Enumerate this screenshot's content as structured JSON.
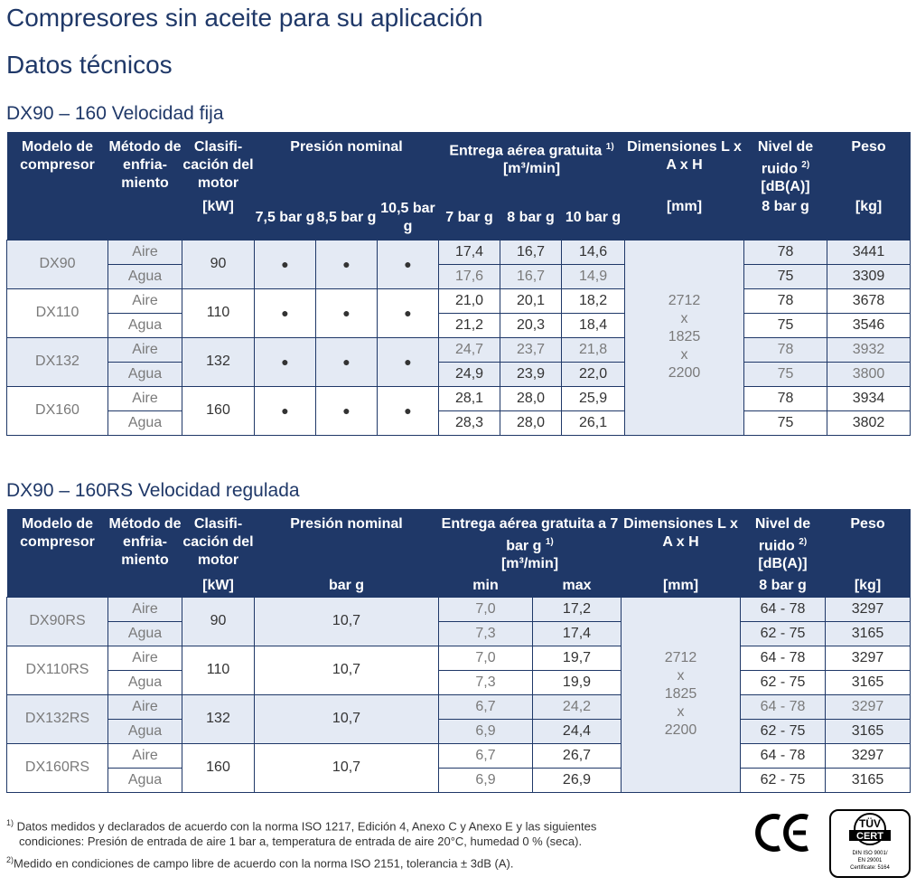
{
  "titles": {
    "main": "Compresores sin aceite para su aplicación",
    "section": "Datos técnicos",
    "table1": "DX90 – 160 Velocidad fija",
    "table2": "DX90 – 160RS Velocidad regulada"
  },
  "t1": {
    "h_model": "Modelo de compresor",
    "h_cool": "Método de enfria-miento",
    "h_class": "Clasifi-cación del motor",
    "h_class_unit": "[kW]",
    "h_press": "Presión nominal",
    "h_p1": "7,5 bar g",
    "h_p2": "8,5 bar g",
    "h_p3": "10,5 bar g",
    "h_flow": "Entrega aérea gratuita",
    "h_flow_sup": "1)",
    "h_flow_unit": "[m³/min]",
    "h_f1": "7 bar g",
    "h_f2": "8 bar g",
    "h_f3": "10 bar g",
    "h_dim": "Dimensiones L x A x H",
    "h_dim_unit": "[mm]",
    "h_noise": "Nivel de ruido",
    "h_noise_sup": "2)",
    "h_noise_unit": "[dB(A)]",
    "h_noise_cond": "8 bar g",
    "h_weight": "Peso",
    "h_weight_unit": "[kg]",
    "dot": "●",
    "dim": [
      "2712",
      "x",
      "1825",
      "x",
      "2200"
    ],
    "rows": [
      {
        "model": "DX90",
        "kw": "90",
        "r": [
          [
            "Aire",
            "17,4",
            "16,7",
            "14,6",
            "78",
            "3441"
          ],
          [
            "Agua",
            "17,6",
            "16,7",
            "14,9",
            "75",
            "3309"
          ]
        ]
      },
      {
        "model": "DX110",
        "kw": "110",
        "r": [
          [
            "Aire",
            "21,0",
            "20,1",
            "18,2",
            "78",
            "3678"
          ],
          [
            "Agua",
            "21,2",
            "20,3",
            "18,4",
            "75",
            "3546"
          ]
        ]
      },
      {
        "model": "DX132",
        "kw": "132",
        "r": [
          [
            "Aire",
            "24,7",
            "23,7",
            "21,8",
            "78",
            "3932"
          ],
          [
            "Agua",
            "24,9",
            "23,9",
            "22,0",
            "75",
            "3800"
          ]
        ]
      },
      {
        "model": "DX160",
        "kw": "160",
        "r": [
          [
            "Aire",
            "28,1",
            "28,0",
            "25,9",
            "78",
            "3934"
          ],
          [
            "Agua",
            "28,3",
            "28,0",
            "26,1",
            "75",
            "3802"
          ]
        ]
      }
    ]
  },
  "t2": {
    "h_model": "Modelo de compresor",
    "h_cool": "Método de enfria-miento",
    "h_class": "Clasifi-cación del motor",
    "h_class_unit": "[kW]",
    "h_press": "Presión nominal",
    "h_press_unit": "bar g",
    "h_flow": "Entrega aérea gratuita a 7 bar g",
    "h_flow_sup": "1)",
    "h_flow_unit": "[m³/min]",
    "h_min": "min",
    "h_max": "max",
    "h_dim": "Dimensiones L x A x H",
    "h_dim_unit": "[mm]",
    "h_noise": "Nivel de ruido",
    "h_noise_sup": "2)",
    "h_noise_unit": "[dB(A)]",
    "h_noise_cond": "8 bar g",
    "h_weight": "Peso",
    "h_weight_unit": "[kg]",
    "dim": [
      "2712",
      "x",
      "1825",
      "x",
      "2200"
    ],
    "rows": [
      {
        "model": "DX90RS",
        "kw": "90",
        "press": "10,7",
        "r": [
          [
            "Aire",
            "7,0",
            "17,2",
            "64 - 78",
            "3297"
          ],
          [
            "Agua",
            "7,3",
            "17,4",
            "62 - 75",
            "3165"
          ]
        ]
      },
      {
        "model": "DX110RS",
        "kw": "110",
        "press": "10,7",
        "r": [
          [
            "Aire",
            "7,0",
            "19,7",
            "64 - 78",
            "3297"
          ],
          [
            "Agua",
            "7,3",
            "19,9",
            "62 - 75",
            "3165"
          ]
        ]
      },
      {
        "model": "DX132RS",
        "kw": "132",
        "press": "10,7",
        "r": [
          [
            "Aire",
            "6,7",
            "24,2",
            "64 - 78",
            "3297"
          ],
          [
            "Agua",
            "6,9",
            "24,4",
            "62 - 75",
            "3165"
          ]
        ]
      },
      {
        "model": "DX160RS",
        "kw": "160",
        "press": "10,7",
        "r": [
          [
            "Aire",
            "6,7",
            "26,7",
            "64 - 78",
            "3297"
          ],
          [
            "Agua",
            "6,9",
            "26,9",
            "62 - 75",
            "3165"
          ]
        ]
      }
    ]
  },
  "footnotes": {
    "n1_mark": "1)",
    "n1_line1": "Datos medidos y declarados de acuerdo con la norma ISO 1217, Edición 4, Anexo C y Anexo E y las siguientes",
    "n1_line2": "condiciones: Presión de entrada de aire 1 bar a, temperatura de entrada de aire 20°C, humedad 0 % (seca).",
    "n2_mark": "2)",
    "n2_line": "Medido en condiciones de campo libre de acuerdo con la norma ISO 2151, tolerancia ± 3dB (A)."
  },
  "logos": {
    "ce": "CE",
    "tuv_top": "TÜV",
    "tuv_cert": "CERT",
    "tuv_l1": "DIN ISO 9001/",
    "tuv_l2": "EN 29001",
    "tuv_l3": "Certificate: 5164"
  },
  "colors": {
    "header_bg": "#1f3868",
    "shade": "#e4eaf4",
    "title": "#1f3868"
  }
}
